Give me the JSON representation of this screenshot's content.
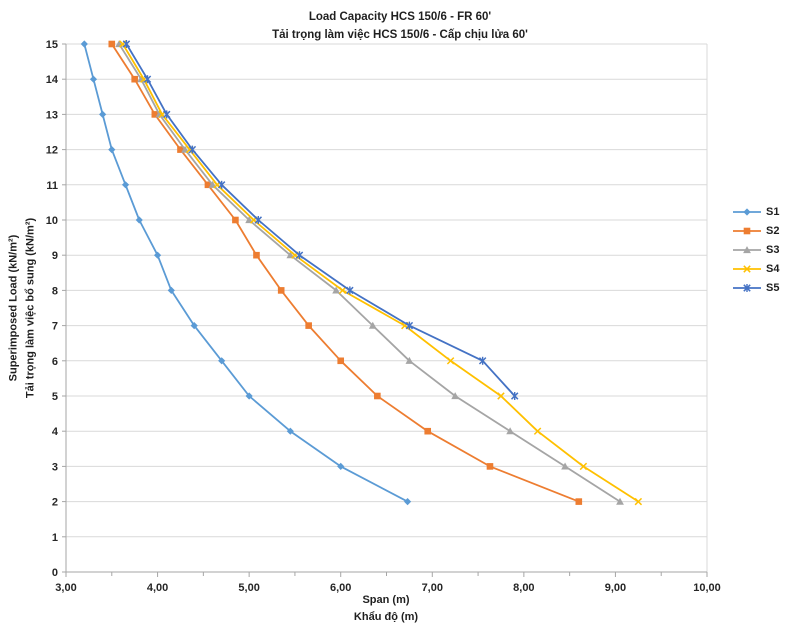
{
  "chart_data": {
    "type": "line",
    "title": "Load Capacity HCS 150/6 - FR 60'",
    "subtitle": "Tải trọng làm việc HCS 150/6 - Cấp chịu lửa 60'",
    "grid": "horizontal",
    "legend_position": "right",
    "colors": {
      "grid": "#D9D9D9",
      "axis": "#A6A6A6",
      "text": "#262626"
    },
    "x_axis": {
      "label": "Span (m)",
      "label_secondary": "Khẩu độ (m)",
      "min": 3,
      "max": 10,
      "major_step": 1,
      "minor_step": 0.5,
      "tick_labels": [
        "3,00",
        "4,00",
        "5,00",
        "6,00",
        "7,00",
        "8,00",
        "9,00",
        "10,00"
      ]
    },
    "y_axis": {
      "label": "Superimposed Load (kN/m²)",
      "label_secondary": "Tải trọng làm việc bổ sung (kN/m²)",
      "min": 0,
      "max": 15,
      "step": 1,
      "tick_labels": [
        "0",
        "1",
        "2",
        "3",
        "4",
        "5",
        "6",
        "7",
        "8",
        "9",
        "10",
        "11",
        "12",
        "13",
        "14",
        "15"
      ]
    },
    "loads": [
      15,
      14,
      13,
      12,
      11,
      10,
      9,
      8,
      7,
      6,
      5,
      4,
      3,
      2
    ],
    "series": [
      {
        "name": "S1",
        "color": "#5B9BD5",
        "marker": "diamond",
        "spans": [
          3.2,
          3.3,
          3.4,
          3.5,
          3.65,
          3.8,
          4.0,
          4.15,
          4.4,
          4.7,
          5.0,
          5.45,
          6.0,
          6.73
        ]
      },
      {
        "name": "S2",
        "color": "#ED7D31",
        "marker": "square",
        "spans": [
          3.5,
          3.75,
          3.97,
          4.25,
          4.55,
          4.85,
          5.08,
          5.35,
          5.65,
          6.0,
          6.4,
          6.95,
          7.63,
          8.6
        ]
      },
      {
        "name": "S3",
        "color": "#A5A5A5",
        "marker": "triangle",
        "spans": [
          3.58,
          3.82,
          4.02,
          4.3,
          4.6,
          5.0,
          5.45,
          5.95,
          6.35,
          6.75,
          7.25,
          7.85,
          8.45,
          9.05
        ]
      },
      {
        "name": "S4",
        "color": "#FFC000",
        "marker": "x",
        "spans": [
          3.62,
          3.85,
          4.05,
          4.35,
          4.65,
          5.05,
          5.5,
          6.02,
          6.7,
          7.2,
          7.75,
          8.15,
          8.65,
          9.25
        ]
      },
      {
        "name": "S5",
        "color": "#4472C4",
        "marker": "asterisk",
        "spans": [
          3.66,
          3.89,
          4.1,
          4.38,
          4.7,
          5.1,
          5.55,
          6.1,
          6.75,
          7.55,
          7.9
        ]
      }
    ]
  }
}
